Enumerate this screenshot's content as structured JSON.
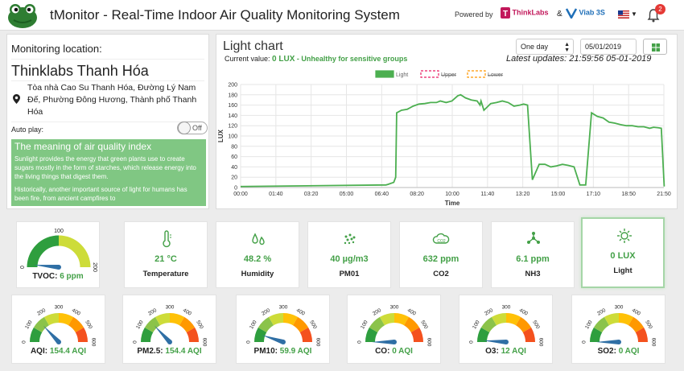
{
  "header": {
    "title": "tMonitor - Real-Time Indoor Air Quality Monitoring System",
    "powered_by": "Powered by",
    "partner1": "ThinkLabs",
    "amp": "&",
    "partner2": "Viab 3S",
    "notification_count": "2"
  },
  "location": {
    "label": "Monitoring location:",
    "name": "Thinklabs Thanh Hóa",
    "address": "Tòa nhà Cao Su Thanh Hóa, Đường Lý Nam Đế, Phường Đông Hương, Thành phố Thanh Hóa",
    "autoplay_label": "Auto play:",
    "autoplay_state": "Off"
  },
  "meaning": {
    "title": "The meaning of air quality index",
    "p1": "Sunlight provides the energy that green plants use to create sugars mostly in the form of starches, which release energy into the living things that digest them.",
    "p2": "Historically, another important source of light for humans has been fire, from ancient campfires to"
  },
  "chart_panel": {
    "title": "Light chart",
    "current_prefix": "Current value:",
    "current_value": "0 LUX",
    "current_status": "- Unhealthy for sensitive groups",
    "range": "One day",
    "date": "05/01/2019",
    "latest": "Latest updates: 21:59:56 05-01-2019"
  },
  "chart_data": {
    "type": "line",
    "xlabel": "Time",
    "ylabel": "LUX",
    "ylim": [
      0,
      200
    ],
    "yticks": [
      0,
      20,
      40,
      60,
      80,
      100,
      120,
      140,
      160,
      180,
      200
    ],
    "xticks": [
      "00:00",
      "01:40",
      "03:20",
      "05:00",
      "06:40",
      "08:20",
      "10:00",
      "11:40",
      "13:20",
      "15:00",
      "17:10",
      "18:50",
      "21:50"
    ],
    "legend": [
      "Light",
      "Upper",
      "Lower"
    ],
    "legend_colors": [
      "#4caf50",
      "#e91e63",
      "#ff9800"
    ],
    "legend_position": "top",
    "series": [
      {
        "name": "Light",
        "color": "#4caf50",
        "x": [
          0,
          7.5,
          7.6,
          7.9,
          8.0,
          8.05,
          8.3,
          8.6,
          8.9,
          9.2,
          9.5,
          9.8,
          10.1,
          10.3,
          10.6,
          10.9,
          11.2,
          11.35,
          11.6,
          11.9,
          12.2,
          12.35,
          12.4,
          12.55,
          12.9,
          13.2,
          13.5,
          13.8,
          14.1,
          14.4,
          14.6,
          14.8,
          15.05,
          15.2,
          15.4,
          15.7,
          16.0,
          16.3,
          16.6,
          16.9,
          17.2,
          17.5,
          17.8,
          18.1,
          18.4,
          18.7,
          19.0,
          19.3,
          19.6,
          19.9,
          20.2,
          20.5,
          20.8,
          21.1,
          21.3,
          21.55,
          21.7,
          21.85
        ],
        "y": [
          2,
          5,
          6,
          10,
          20,
          145,
          150,
          152,
          158,
          162,
          163,
          165,
          165,
          168,
          165,
          168,
          178,
          180,
          174,
          170,
          168,
          160,
          168,
          150,
          163,
          165,
          168,
          165,
          158,
          160,
          162,
          160,
          15,
          28,
          45,
          45,
          40,
          42,
          45,
          43,
          40,
          5,
          5,
          145,
          138,
          135,
          127,
          125,
          122,
          120,
          120,
          118,
          118,
          115,
          117,
          116,
          115,
          2
        ]
      }
    ],
    "upper": "hidden",
    "lower": "hidden"
  },
  "cards": [
    {
      "label": "Temperature",
      "value": "21 °C",
      "icon": "thermometer-icon"
    },
    {
      "label": "Humidity",
      "value": "48.2 %",
      "icon": "droplets-icon"
    },
    {
      "label": "PM01",
      "value": "40 µg/m3",
      "icon": "particles-icon"
    },
    {
      "label": "CO2",
      "value": "632 ppm",
      "icon": "co2-cloud-icon"
    },
    {
      "label": "NH3",
      "value": "6.1 ppm",
      "icon": "molecule-icon"
    },
    {
      "label": "Light",
      "value": "0 LUX",
      "icon": "sun-icon"
    }
  ],
  "tvoc": {
    "label": "TVOC:",
    "value": "6 ppm",
    "min": "0",
    "mid": "100",
    "max": "200",
    "level": 0.03
  },
  "aqi_gauges": [
    {
      "label": "AQI:",
      "value": "154.4 AQI",
      "level": 0.26
    },
    {
      "label": "PM2.5:",
      "value": "154.4 AQI",
      "level": 0.26
    },
    {
      "label": "PM10:",
      "value": "59.9 AQI",
      "level": 0.1
    },
    {
      "label": "CO:",
      "value": "0 AQI",
      "level": 0.0
    },
    {
      "label": "O3:",
      "value": "12 AQI",
      "level": 0.02
    },
    {
      "label": "SO2:",
      "value": "0 AQI",
      "level": 0.0
    }
  ],
  "aqi_ticks": [
    "0",
    "100",
    "200",
    "300",
    "400",
    "500",
    "600"
  ]
}
